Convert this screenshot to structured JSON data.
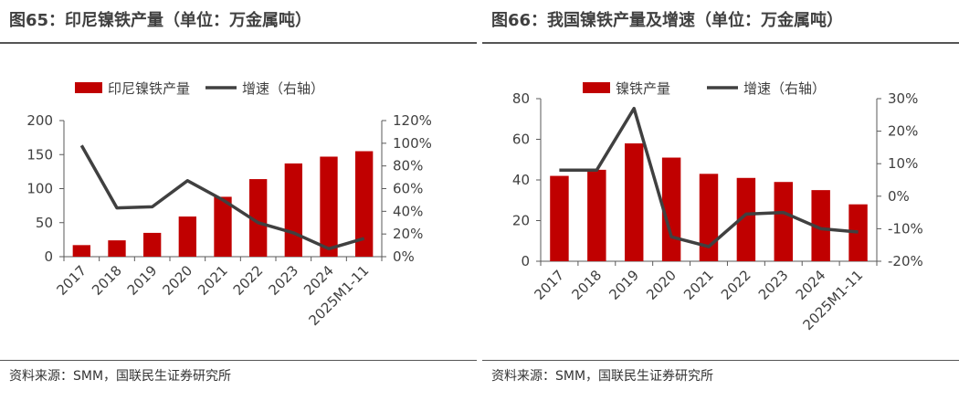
{
  "colors": {
    "bar": "#c00000",
    "line": "#404040",
    "axis": "#595959"
  },
  "figures": [
    {
      "title": "图65：印尼镍铁产量（单位：万金属吨）",
      "source": "资料来源：SMM，国联民生证券研究所",
      "chart_data": {
        "type": "bar",
        "categories": [
          "2017",
          "2018",
          "2019",
          "2020",
          "2021",
          "2022",
          "2023",
          "2024",
          "2025M1-11"
        ],
        "series": [
          {
            "name": "印尼镍铁产量",
            "type": "bar",
            "axis": "left",
            "values": [
              17,
              24,
              35,
              59,
              88,
              114,
              137,
              147,
              155
            ]
          },
          {
            "name": "增速（右轴）",
            "type": "line",
            "axis": "right",
            "values": [
              0.98,
              0.43,
              0.44,
              0.67,
              0.5,
              0.3,
              0.21,
              0.07,
              0.16
            ]
          }
        ],
        "y_left": {
          "min": 0,
          "max": 200,
          "ticks": [
            0,
            50,
            100,
            150,
            200
          ],
          "labels": [
            "0",
            "50",
            "100",
            "150",
            "200"
          ]
        },
        "y_right": {
          "min": 0,
          "max": 1.2,
          "ticks": [
            0,
            0.2,
            0.4,
            0.6,
            0.8,
            1.0,
            1.2
          ],
          "labels": [
            "0%",
            "20%",
            "40%",
            "60%",
            "80%",
            "100%",
            "120%"
          ]
        },
        "legend": "top",
        "grid": false
      }
    },
    {
      "title": "图66：我国镍铁产量及增速（单位：万金属吨）",
      "source": "资料来源：SMM，国联民生证券研究所",
      "chart_data": {
        "type": "bar",
        "categories": [
          "2017",
          "2018",
          "2019",
          "2020",
          "2021",
          "2022",
          "2023",
          "2024",
          "2025M1-11"
        ],
        "series": [
          {
            "name": "镍铁产量",
            "type": "bar",
            "axis": "left",
            "values": [
              42,
              45,
              58,
              51,
              43,
              41,
              39,
              35,
              28
            ]
          },
          {
            "name": "增速（右轴）",
            "type": "line",
            "axis": "right",
            "values": [
              0.08,
              0.08,
              0.27,
              -0.125,
              -0.155,
              -0.055,
              -0.05,
              -0.1,
              -0.11
            ]
          }
        ],
        "y_left": {
          "min": 0,
          "max": 80,
          "ticks": [
            0,
            20,
            40,
            60,
            80
          ],
          "labels": [
            "0",
            "20",
            "40",
            "60",
            "80"
          ]
        },
        "y_right": {
          "min": -0.2,
          "max": 0.3,
          "ticks": [
            -0.2,
            -0.1,
            0,
            0.1,
            0.2,
            0.3
          ],
          "labels": [
            "-20%",
            "-10%",
            "0%",
            "10%",
            "20%",
            "30%"
          ]
        },
        "legend": "top",
        "grid": false
      }
    }
  ]
}
